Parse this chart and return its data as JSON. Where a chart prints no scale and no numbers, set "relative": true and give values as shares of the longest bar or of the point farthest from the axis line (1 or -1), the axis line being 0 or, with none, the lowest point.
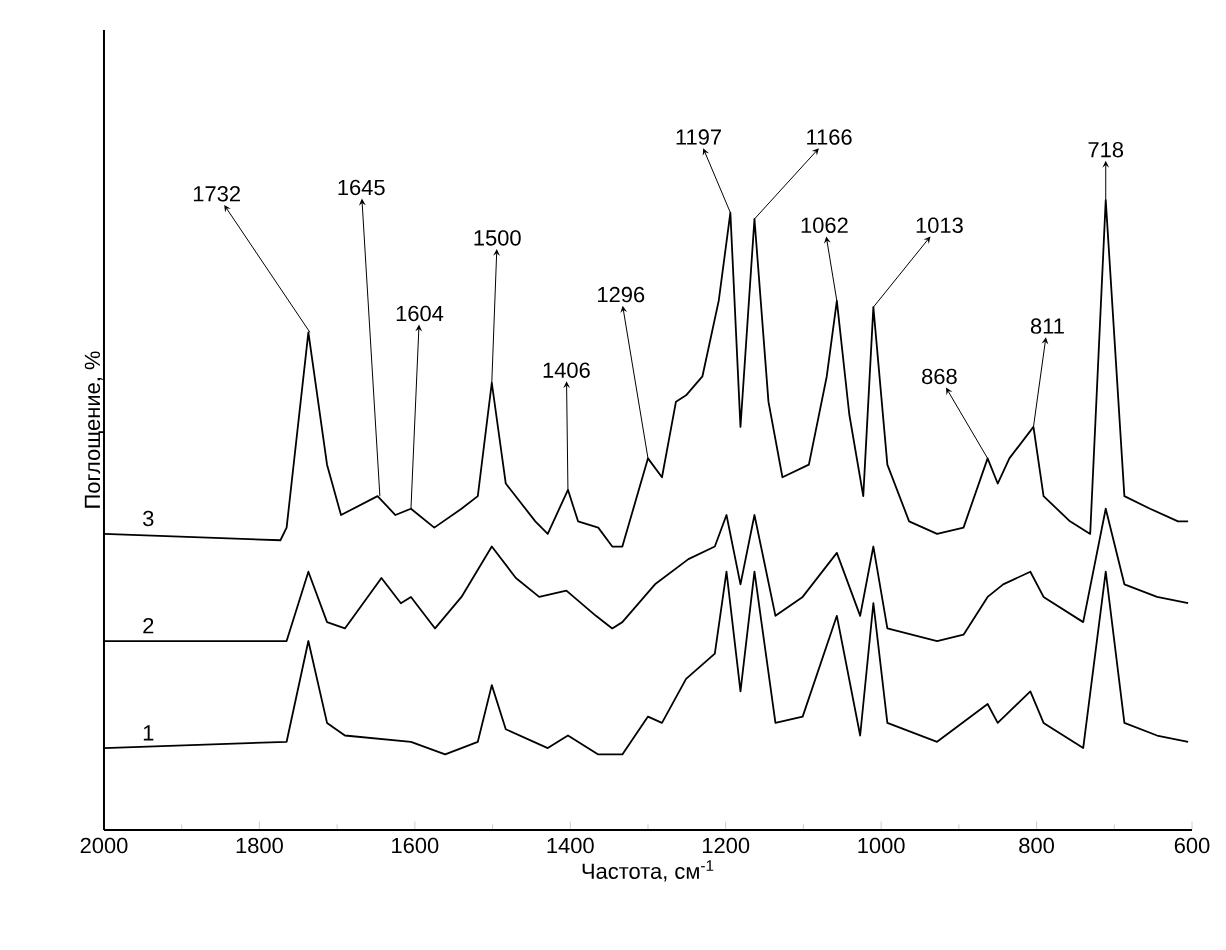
{
  "chart_data": {
    "type": "line",
    "relative": true,
    "xlabel": "Частота, см$^{-1}$",
    "ylabel": "Поглощение, %",
    "xlim": [
      2000,
      600
    ],
    "xticks": [
      2000,
      1800,
      1600,
      1400,
      1200,
      1000,
      800,
      600
    ],
    "series": [
      {
        "name": "1",
        "color": "#000000",
        "x": [
          2000,
          1765,
          1737,
          1713,
          1690,
          1605,
          1561,
          1519,
          1501,
          1483,
          1429,
          1403,
          1364,
          1333,
          1300,
          1282,
          1251,
          1214,
          1199,
          1181,
          1163,
          1136,
          1101,
          1057,
          1027,
          1010,
          992,
          928,
          863,
          850,
          808,
          791,
          740,
          711,
          687,
          645,
          605
        ],
        "values": [
          0.13,
          0.14,
          0.3,
          0.17,
          0.15,
          0.14,
          0.12,
          0.14,
          0.23,
          0.16,
          0.13,
          0.15,
          0.12,
          0.12,
          0.18,
          0.17,
          0.24,
          0.28,
          0.41,
          0.22,
          0.41,
          0.17,
          0.18,
          0.34,
          0.15,
          0.36,
          0.17,
          0.14,
          0.2,
          0.17,
          0.22,
          0.17,
          0.13,
          0.41,
          0.17,
          0.15,
          0.14
        ]
      },
      {
        "name": "2",
        "color": "#000000",
        "x": [
          2000,
          1765,
          1737,
          1713,
          1690,
          1643,
          1618,
          1605,
          1574,
          1540,
          1501,
          1470,
          1440,
          1405,
          1367,
          1346,
          1333,
          1291,
          1248,
          1214,
          1199,
          1181,
          1163,
          1136,
          1101,
          1057,
          1027,
          1010,
          992,
          928,
          894,
          863,
          843,
          808,
          791,
          740,
          711,
          687,
          645,
          605
        ],
        "values": [
          0.3,
          0.3,
          0.41,
          0.33,
          0.32,
          0.4,
          0.36,
          0.37,
          0.32,
          0.37,
          0.45,
          0.4,
          0.37,
          0.38,
          0.34,
          0.32,
          0.33,
          0.39,
          0.43,
          0.45,
          0.5,
          0.39,
          0.5,
          0.34,
          0.37,
          0.44,
          0.34,
          0.45,
          0.32,
          0.3,
          0.31,
          0.37,
          0.39,
          0.41,
          0.37,
          0.33,
          0.51,
          0.39,
          0.37,
          0.36
        ]
      },
      {
        "name": "3",
        "color": "#000000",
        "x": [
          2000,
          1773,
          1765,
          1737,
          1713,
          1695,
          1648,
          1625,
          1605,
          1575,
          1540,
          1519,
          1501,
          1483,
          1445,
          1429,
          1403,
          1390,
          1364,
          1346,
          1333,
          1300,
          1282,
          1264,
          1251,
          1230,
          1209,
          1194,
          1181,
          1163,
          1145,
          1127,
          1093,
          1070,
          1057,
          1041,
          1023,
          1010,
          992,
          964,
          928,
          894,
          863,
          850,
          835,
          804,
          791,
          757,
          731,
          711,
          687,
          654,
          618,
          605
        ],
        "values": [
          0.47,
          0.46,
          0.48,
          0.79,
          0.58,
          0.5,
          0.53,
          0.5,
          0.51,
          0.48,
          0.51,
          0.53,
          0.71,
          0.55,
          0.49,
          0.47,
          0.54,
          0.49,
          0.48,
          0.45,
          0.45,
          0.59,
          0.56,
          0.68,
          0.69,
          0.72,
          0.84,
          0.98,
          0.64,
          0.97,
          0.68,
          0.56,
          0.58,
          0.72,
          0.84,
          0.66,
          0.53,
          0.83,
          0.58,
          0.49,
          0.47,
          0.48,
          0.59,
          0.55,
          0.59,
          0.64,
          0.53,
          0.49,
          0.47,
          1.0,
          0.53,
          0.51,
          0.49,
          0.49
        ]
      }
    ],
    "annotations": [
      {
        "text": "1732",
        "x": 1735,
        "y": 0.79
      },
      {
        "text": "1645",
        "x": 1645,
        "y": 0.53
      },
      {
        "text": "1604",
        "x": 1605,
        "y": 0.51
      },
      {
        "text": "1500",
        "x": 1501,
        "y": 0.71
      },
      {
        "text": "1406",
        "x": 1403,
        "y": 0.54
      },
      {
        "text": "1296",
        "x": 1300,
        "y": 0.59
      },
      {
        "text": "1197",
        "x": 1194,
        "y": 0.98
      },
      {
        "text": "1166",
        "x": 1163,
        "y": 0.97
      },
      {
        "text": "1062",
        "x": 1057,
        "y": 0.84
      },
      {
        "text": "1013",
        "x": 1010,
        "y": 0.83
      },
      {
        "text": "868",
        "x": 863,
        "y": 0.59
      },
      {
        "text": "811",
        "x": 804,
        "y": 0.64
      },
      {
        "text": "718",
        "x": 711,
        "y": 1.0
      }
    ]
  }
}
